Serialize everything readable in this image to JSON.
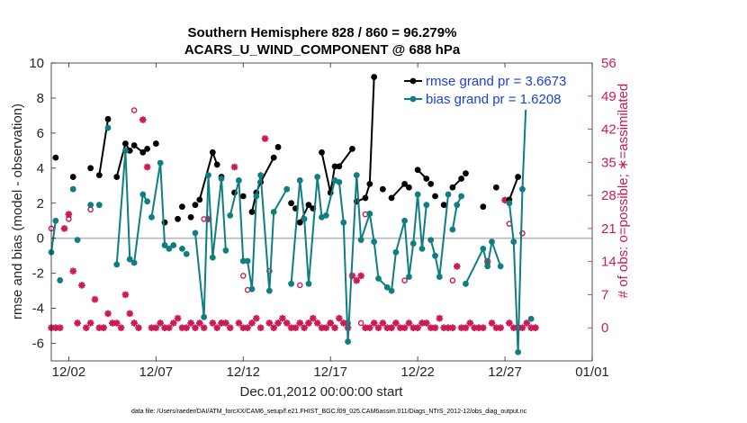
{
  "chart_data": {
    "type": "line",
    "title_line1": "Southern Hemisphere 828 / 860 = 96.279%",
    "title_line2": "ACARS_U_WIND_COMPONENT @ 688 hPa",
    "xlabel": "Dec.01,2012 00:00:00 start",
    "ylabel": "rmse and bias (model - observation)",
    "ylabel_right": "# of obs: o=possible; ∗=assimilated",
    "xlim": [
      0,
      31
    ],
    "ylim": [
      -7,
      10
    ],
    "ylim_right": [
      -7,
      56
    ],
    "x_tick_values": [
      1,
      6,
      11,
      16,
      21,
      26,
      31
    ],
    "x_tick_labels": [
      "12/02",
      "12/07",
      "12/12",
      "12/17",
      "12/22",
      "12/27",
      "01/01"
    ],
    "y_ticks": [
      -6,
      -4,
      -2,
      0,
      2,
      4,
      6,
      8,
      10
    ],
    "y_ticks_right": [
      0,
      7,
      14,
      21,
      28,
      35,
      42,
      49,
      56
    ],
    "zero_line": 0,
    "colors": {
      "rmse": "#000000",
      "bias": "#0f7e80",
      "obs": "#cc1a55",
      "zero": "#b8b8b8"
    },
    "legend": [
      {
        "label": "rmse grand pr = 3.6673",
        "color": "#000000"
      },
      {
        "label": "bias grand pr = 1.6208",
        "color": "#0f7e80"
      }
    ],
    "legend_placement": "top-right",
    "footer": "data file: /Users/raeder/DAI/ATM_forcXX/CAM6_setup/f.e21.FHIST_BGC.f09_025.CAM6assim.011/Diags_NTrS_2012-12/obs_diag_output.nc",
    "series": [
      {
        "name": "rmse",
        "points": [
          [
            0.25,
            4.6,
            1
          ],
          [
            1.25,
            3.5,
            0
          ],
          [
            2.25,
            4.0,
            0
          ],
          [
            2.75,
            3.6,
            0
          ],
          [
            3.25,
            6.8,
            1
          ],
          [
            3.75,
            3.5,
            0
          ],
          [
            4.25,
            5.4,
            1
          ],
          [
            4.5,
            5.0,
            1
          ],
          [
            4.75,
            5.3,
            0
          ],
          [
            5.25,
            4.9,
            1
          ],
          [
            5.5,
            5.1,
            0
          ],
          [
            6.0,
            5.4,
            0
          ],
          [
            6.5,
            0.9,
            0
          ],
          [
            7.25,
            1.1,
            0
          ],
          [
            7.5,
            1.8,
            0
          ],
          [
            8.0,
            1.2,
            0
          ],
          [
            8.25,
            1.9,
            0
          ],
          [
            8.5,
            2.2,
            0
          ],
          [
            9.25,
            4.9,
            1
          ],
          [
            9.5,
            4.2,
            1
          ],
          [
            9.75,
            3.5,
            0
          ],
          [
            10.5,
            2.6,
            0
          ],
          [
            11.0,
            2.4,
            0
          ],
          [
            11.5,
            1.5,
            0
          ],
          [
            11.75,
            2.6,
            1
          ],
          [
            12.0,
            3.2,
            1
          ],
          [
            12.75,
            4.6,
            1
          ],
          [
            13.0,
            5.2,
            0
          ],
          [
            13.75,
            2.0,
            0
          ],
          [
            14.0,
            1.7,
            0
          ],
          [
            14.25,
            0.9,
            0
          ],
          [
            14.75,
            1.9,
            1
          ],
          [
            15.0,
            1.7,
            0
          ],
          [
            15.5,
            4.9,
            0
          ],
          [
            16.0,
            2.6,
            1
          ],
          [
            16.25,
            4.1,
            1
          ],
          [
            16.5,
            4.1,
            0
          ],
          [
            17.25,
            5.1,
            1
          ],
          [
            17.5,
            2.1,
            0
          ],
          [
            18.0,
            2.3,
            1
          ],
          [
            18.25,
            3.1,
            1
          ],
          [
            18.5,
            9.2,
            1
          ],
          [
            19.0,
            2.8,
            0
          ],
          [
            19.5,
            2.3,
            0
          ],
          [
            20.25,
            3.1,
            1
          ],
          [
            20.5,
            2.9,
            0
          ],
          [
            21.0,
            3.9,
            0
          ],
          [
            21.5,
            3.4,
            1
          ],
          [
            21.75,
            3.1,
            0
          ],
          [
            22.0,
            2.4,
            0
          ],
          [
            22.5,
            1.9,
            0
          ],
          [
            23.0,
            2.9,
            0
          ],
          [
            23.5,
            3.4,
            1
          ],
          [
            23.75,
            3.7,
            0
          ],
          [
            24.75,
            1.8,
            0
          ],
          [
            25.5,
            2.9,
            0
          ],
          [
            26.25,
            2.2,
            0
          ],
          [
            26.75,
            3.5,
            1
          ],
          [
            27.0,
            9.0,
            0
          ]
        ]
      },
      {
        "name": "bias",
        "points": [
          [
            0.0,
            -0.8,
            0
          ],
          [
            0.25,
            1.0,
            1
          ],
          [
            0.5,
            -2.4,
            0
          ],
          [
            1.25,
            2.8,
            0
          ],
          [
            1.5,
            -0.1,
            0
          ],
          [
            2.25,
            1.9,
            0
          ],
          [
            2.75,
            1.9,
            0
          ],
          [
            3.25,
            6.3,
            0
          ],
          [
            3.75,
            -1.5,
            0
          ],
          [
            4.25,
            5.0,
            1
          ],
          [
            4.5,
            -1.2,
            1
          ],
          [
            4.75,
            -1.4,
            0
          ],
          [
            5.25,
            2.5,
            1
          ],
          [
            5.5,
            2.1,
            1
          ],
          [
            5.75,
            1.2,
            0
          ],
          [
            6.25,
            4.3,
            1
          ],
          [
            6.5,
            -0.4,
            1
          ],
          [
            6.75,
            -0.6,
            1
          ],
          [
            7.0,
            -0.4,
            0
          ],
          [
            7.5,
            -0.6,
            0
          ],
          [
            7.75,
            -0.9,
            0
          ],
          [
            8.25,
            0.3,
            0
          ],
          [
            8.75,
            -4.5,
            1
          ],
          [
            9.0,
            3.6,
            1
          ],
          [
            9.25,
            -1.1,
            1
          ],
          [
            9.75,
            3.4,
            1
          ],
          [
            10.0,
            -0.7,
            1
          ],
          [
            10.25,
            1.3,
            0
          ],
          [
            10.75,
            3.3,
            1
          ],
          [
            11.0,
            -1.3,
            1
          ],
          [
            11.25,
            -1.3,
            0
          ],
          [
            11.5,
            -2.9,
            1
          ],
          [
            11.75,
            2.4,
            1
          ],
          [
            12.0,
            3.6,
            1
          ],
          [
            12.5,
            -3.0,
            1
          ],
          [
            12.75,
            1.5,
            1
          ],
          [
            13.5,
            2.8,
            1
          ],
          [
            13.75,
            -2.6,
            0
          ],
          [
            14.25,
            3.3,
            1
          ],
          [
            14.5,
            1.1,
            1
          ],
          [
            14.75,
            -2.6,
            1
          ],
          [
            15.25,
            3.5,
            1
          ],
          [
            15.5,
            1.2,
            1
          ],
          [
            15.75,
            1.3,
            0
          ],
          [
            16.25,
            3.3,
            1
          ],
          [
            16.5,
            3.2,
            1
          ],
          [
            16.75,
            0.9,
            1
          ],
          [
            17.0,
            -5.9,
            1
          ],
          [
            17.5,
            3.6,
            1
          ],
          [
            17.75,
            -0.1,
            1
          ],
          [
            18.25,
            1.4,
            1
          ],
          [
            18.5,
            -0.2,
            1
          ],
          [
            18.75,
            -2.3,
            1
          ],
          [
            19.25,
            -2.8,
            1
          ],
          [
            19.5,
            -3.0,
            1
          ],
          [
            19.75,
            -0.8,
            1
          ],
          [
            20.25,
            1.0,
            1
          ],
          [
            20.5,
            -2.2,
            1
          ],
          [
            20.75,
            -0.3,
            1
          ],
          [
            21.0,
            2.5,
            1
          ],
          [
            21.25,
            -0.6,
            1
          ],
          [
            21.5,
            1.9,
            1
          ],
          [
            21.75,
            -0.1,
            0
          ],
          [
            22.0,
            -1.0,
            1
          ],
          [
            22.25,
            -2.2,
            1
          ],
          [
            22.75,
            2.5,
            1
          ],
          [
            23.0,
            0.5,
            0
          ],
          [
            23.25,
            1.9,
            1
          ],
          [
            23.5,
            2.4,
            1
          ],
          [
            23.75,
            -2.6,
            0
          ],
          [
            24.75,
            -0.6,
            1
          ],
          [
            25.0,
            -1.6,
            1
          ],
          [
            25.25,
            -0.2,
            1
          ],
          [
            25.75,
            -1.6,
            1
          ],
          [
            26.25,
            2.0,
            0
          ],
          [
            26.5,
            -0.2,
            1
          ],
          [
            26.75,
            -6.5,
            1
          ],
          [
            27.0,
            2.8,
            1
          ],
          [
            27.25,
            8.7,
            1
          ],
          [
            27.5,
            -4.6,
            0
          ]
        ]
      },
      {
        "name": "possible",
        "values": [
          [
            0.0,
            21
          ],
          [
            1.0,
            23
          ],
          [
            2.25,
            25
          ],
          [
            4.75,
            46
          ],
          [
            8.75,
            23
          ],
          [
            11.0,
            11
          ],
          [
            11.25,
            8
          ],
          [
            12.5,
            12
          ],
          [
            14.25,
            9
          ],
          [
            16.0,
            1
          ],
          [
            17.0,
            1
          ],
          [
            17.75,
            1
          ],
          [
            18.0,
            24
          ],
          [
            20.25,
            10
          ],
          [
            23.0,
            10
          ],
          [
            26.25,
            22
          ],
          [
            27.0,
            20
          ]
        ]
      },
      {
        "name": "assimilated",
        "values": [
          [
            0.0,
            0
          ],
          [
            0.25,
            0
          ],
          [
            0.5,
            0
          ],
          [
            0.75,
            21
          ],
          [
            1.0,
            24
          ],
          [
            1.25,
            12
          ],
          [
            1.5,
            1
          ],
          [
            1.75,
            9
          ],
          [
            2.0,
            0
          ],
          [
            2.25,
            1
          ],
          [
            2.5,
            6
          ],
          [
            2.75,
            0
          ],
          [
            3.0,
            0
          ],
          [
            3.25,
            3
          ],
          [
            3.5,
            1
          ],
          [
            3.75,
            1
          ],
          [
            4.0,
            0
          ],
          [
            4.25,
            7
          ],
          [
            4.5,
            3
          ],
          [
            4.75,
            1
          ],
          [
            5.0,
            0
          ],
          [
            5.25,
            44
          ],
          [
            5.5,
            34
          ],
          [
            5.75,
            0
          ],
          [
            6.0,
            0
          ],
          [
            6.25,
            1
          ],
          [
            6.5,
            0
          ],
          [
            6.75,
            0
          ],
          [
            7.0,
            1
          ],
          [
            7.25,
            2
          ],
          [
            7.5,
            0
          ],
          [
            7.75,
            0
          ],
          [
            8.0,
            1
          ],
          [
            8.25,
            0
          ],
          [
            8.5,
            1
          ],
          [
            8.75,
            0
          ],
          [
            9.0,
            23
          ],
          [
            9.25,
            1
          ],
          [
            9.5,
            0
          ],
          [
            9.75,
            1
          ],
          [
            10.0,
            1
          ],
          [
            10.25,
            0
          ],
          [
            10.5,
            34
          ],
          [
            10.75,
            1
          ],
          [
            11.0,
            0
          ],
          [
            11.25,
            0
          ],
          [
            11.5,
            1
          ],
          [
            11.75,
            2
          ],
          [
            12.0,
            0
          ],
          [
            12.25,
            40
          ],
          [
            12.5,
            1
          ],
          [
            12.75,
            0
          ],
          [
            13.0,
            1
          ],
          [
            13.25,
            2
          ],
          [
            13.5,
            1
          ],
          [
            13.75,
            0
          ],
          [
            14.0,
            0
          ],
          [
            14.25,
            1
          ],
          [
            14.5,
            0
          ],
          [
            14.75,
            1
          ],
          [
            15.0,
            2
          ],
          [
            15.25,
            1
          ],
          [
            15.5,
            0
          ],
          [
            15.75,
            0
          ],
          [
            16.0,
            1
          ],
          [
            16.25,
            0
          ],
          [
            16.5,
            2
          ],
          [
            16.75,
            1
          ],
          [
            17.0,
            0
          ],
          [
            17.25,
            11
          ],
          [
            17.5,
            10
          ],
          [
            17.75,
            11
          ],
          [
            18.0,
            0
          ],
          [
            18.25,
            0
          ],
          [
            18.5,
            1
          ],
          [
            18.75,
            0
          ],
          [
            19.0,
            1
          ],
          [
            19.25,
            0
          ],
          [
            19.5,
            0
          ],
          [
            19.75,
            1
          ],
          [
            20.0,
            0
          ],
          [
            20.25,
            0
          ],
          [
            20.5,
            1
          ],
          [
            20.75,
            0
          ],
          [
            21.0,
            0
          ],
          [
            21.25,
            1
          ],
          [
            21.5,
            1
          ],
          [
            21.75,
            0
          ],
          [
            22.0,
            0
          ],
          [
            22.25,
            2
          ],
          [
            22.5,
            0
          ],
          [
            22.75,
            0
          ],
          [
            23.0,
            0
          ],
          [
            23.25,
            13
          ],
          [
            23.5,
            0
          ],
          [
            23.75,
            0
          ],
          [
            24.0,
            1
          ],
          [
            24.25,
            0
          ],
          [
            24.5,
            0
          ],
          [
            24.75,
            0
          ],
          [
            25.0,
            14
          ],
          [
            25.25,
            1
          ],
          [
            25.5,
            0
          ],
          [
            25.75,
            0
          ],
          [
            26.0,
            27
          ],
          [
            26.25,
            1
          ],
          [
            26.5,
            0
          ],
          [
            26.75,
            0
          ],
          [
            27.0,
            0
          ],
          [
            27.25,
            1
          ],
          [
            27.5,
            0
          ],
          [
            27.75,
            0
          ]
        ]
      }
    ]
  }
}
